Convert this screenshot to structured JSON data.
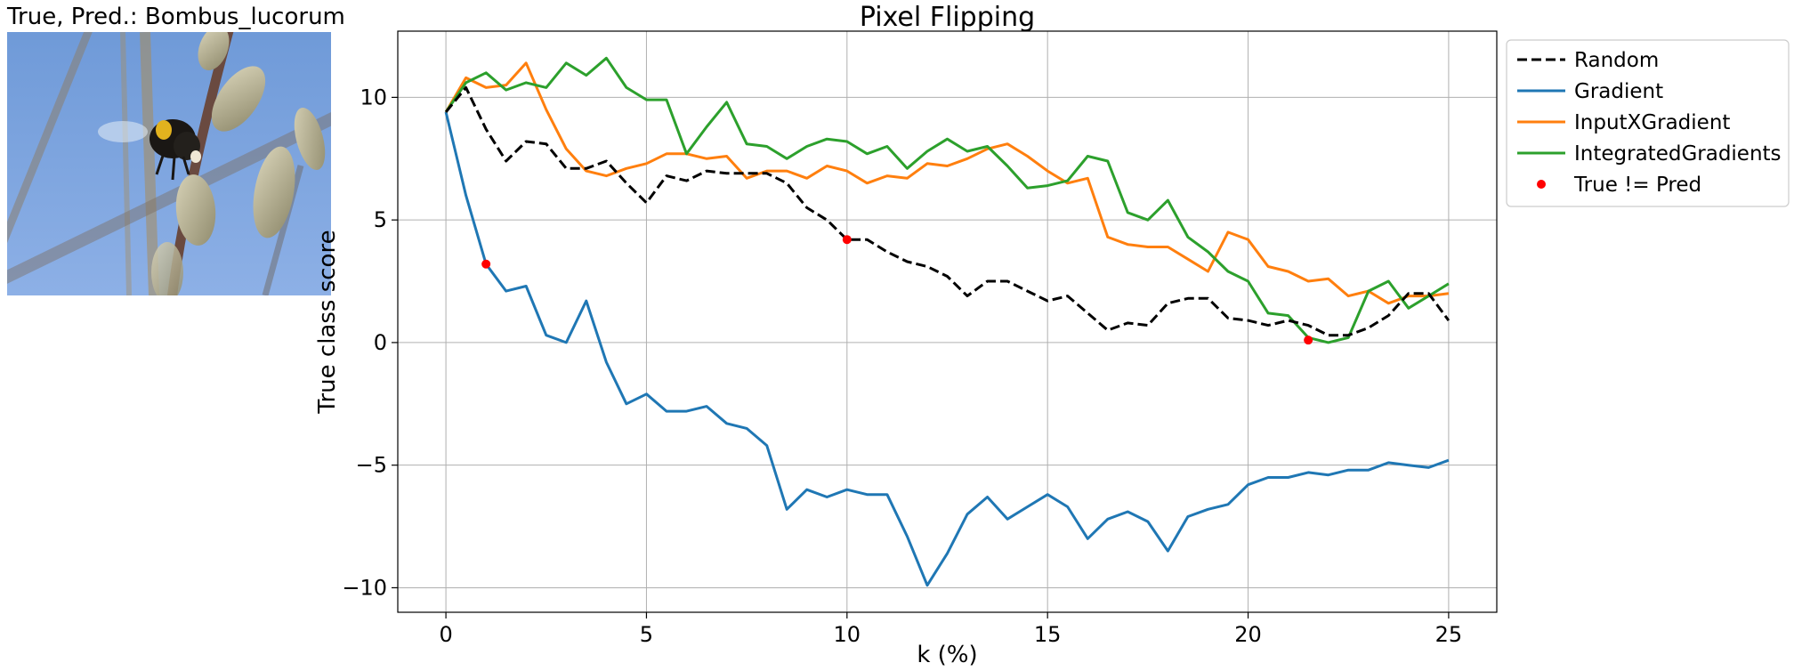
{
  "image_panel": {
    "title": "True, Pred.: Bombus_lucorum"
  },
  "chart_data": {
    "type": "line",
    "title": "Pixel Flipping",
    "xlabel": "k (%)",
    "ylabel": "True class score",
    "xlim": [
      -1.2,
      26.2
    ],
    "ylim": [
      -11,
      12.7
    ],
    "xticks": [
      0,
      5,
      10,
      15,
      20,
      25
    ],
    "yticks": [
      -10,
      -5,
      0,
      5,
      10
    ],
    "ytick_labels": [
      "−10",
      "−5",
      "0",
      "5",
      "10"
    ],
    "grid": true,
    "legend_position": "outside-top-right",
    "x": [
      0,
      0.5,
      1,
      1.5,
      2,
      2.5,
      3,
      3.5,
      4,
      4.5,
      5,
      5.5,
      6,
      6.5,
      7,
      7.5,
      8,
      8.5,
      9,
      9.5,
      10,
      10.5,
      11,
      11.5,
      12,
      12.5,
      13,
      13.5,
      14,
      14.5,
      15,
      15.5,
      16,
      16.5,
      17,
      17.5,
      18,
      18.5,
      19,
      19.5,
      20,
      20.5,
      21,
      21.5,
      22,
      22.5,
      23,
      23.5,
      24,
      24.5,
      25
    ],
    "series": [
      {
        "name": "Random",
        "color": "#000000",
        "dashed": true,
        "values": [
          9.4,
          10.4,
          8.7,
          7.4,
          8.2,
          8.1,
          7.1,
          7.1,
          7.4,
          6.5,
          5.7,
          6.8,
          6.6,
          7.0,
          6.9,
          6.9,
          6.9,
          6.5,
          5.5,
          5.0,
          4.2,
          4.2,
          3.7,
          3.3,
          3.1,
          2.7,
          1.9,
          2.5,
          2.5,
          2.1,
          1.7,
          1.9,
          1.2,
          0.5,
          0.8,
          0.7,
          1.6,
          1.8,
          1.8,
          1.0,
          0.9,
          0.7,
          0.9,
          0.7,
          0.3,
          0.3,
          0.6,
          1.1,
          2.0,
          2.0,
          0.9
        ]
      },
      {
        "name": "Gradient",
        "color": "#1f77b4",
        "dashed": false,
        "values": [
          9.4,
          6.0,
          3.2,
          2.1,
          2.3,
          0.3,
          0.0,
          1.7,
          -0.8,
          -2.5,
          -2.1,
          -2.8,
          -2.8,
          -2.6,
          -3.3,
          -3.5,
          -4.2,
          -6.8,
          -6.0,
          -6.3,
          -6.0,
          -6.2,
          -6.2,
          -7.9,
          -9.9,
          -8.6,
          -7.0,
          -6.3,
          -7.2,
          -6.7,
          -6.2,
          -6.7,
          -8.0,
          -7.2,
          -6.9,
          -7.3,
          -8.5,
          -7.1,
          -6.8,
          -6.6,
          -5.8,
          -5.5,
          -5.5,
          -5.3,
          -5.4,
          -5.2,
          -5.2,
          -4.9,
          -5.0,
          -5.1,
          -4.8
        ]
      },
      {
        "name": "InputXGradient",
        "color": "#ff7f0e",
        "dashed": false,
        "values": [
          9.4,
          10.8,
          10.4,
          10.5,
          11.4,
          9.5,
          7.9,
          7.0,
          6.8,
          7.1,
          7.3,
          7.7,
          7.7,
          7.5,
          7.6,
          6.7,
          7.0,
          7.0,
          6.7,
          7.2,
          7.0,
          6.5,
          6.8,
          6.7,
          7.3,
          7.2,
          7.5,
          7.9,
          8.1,
          7.6,
          7.0,
          6.5,
          6.7,
          4.3,
          4.0,
          3.9,
          3.9,
          3.4,
          2.9,
          4.5,
          4.2,
          3.1,
          2.9,
          2.5,
          2.6,
          1.9,
          2.1,
          1.6,
          1.9,
          1.9,
          2.0
        ]
      },
      {
        "name": "IntegratedGradients",
        "color": "#2ca02c",
        "dashed": false,
        "values": [
          9.4,
          10.6,
          11.0,
          10.3,
          10.6,
          10.4,
          11.4,
          10.9,
          11.6,
          10.4,
          9.9,
          9.9,
          7.7,
          8.8,
          9.8,
          8.1,
          8.0,
          7.5,
          8.0,
          8.3,
          8.2,
          7.7,
          8.0,
          7.1,
          7.8,
          8.3,
          7.8,
          8.0,
          7.2,
          6.3,
          6.4,
          6.6,
          7.6,
          7.4,
          5.3,
          5.0,
          5.8,
          4.3,
          3.7,
          2.9,
          2.5,
          1.2,
          1.1,
          0.2,
          0.0,
          0.2,
          2.1,
          2.5,
          1.4,
          1.9,
          2.4
        ]
      }
    ],
    "markers": {
      "name": "True != Pred",
      "color": "#ff0000",
      "points": [
        {
          "x": 1,
          "y": 3.2
        },
        {
          "x": 10,
          "y": 4.2
        },
        {
          "x": 21.5,
          "y": 0.1
        }
      ]
    }
  }
}
